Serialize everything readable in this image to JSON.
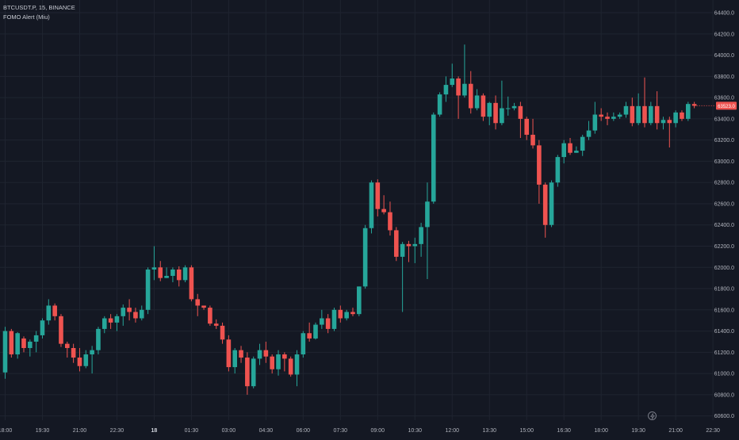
{
  "symbol_line": "BTCUSDT.P, 15, BINANCE",
  "indicator_line": "FOMO Alert (Miu)",
  "price_tag": "63523.0",
  "icons": {
    "bottom_right": "lightning-icon"
  },
  "colors": {
    "background": "#141823",
    "grid": "#1f2430",
    "up": "#26a69a",
    "down": "#ef5350",
    "axis_text": "#b2b5be"
  },
  "chart_data": {
    "type": "candlestick",
    "title": "",
    "xlabel": "",
    "ylabel": "",
    "ylim": [
      60560,
      64520
    ],
    "y_ticks": [
      60600,
      60800,
      61000,
      61200,
      61400,
      61600,
      61800,
      62000,
      62200,
      62400,
      62600,
      62800,
      63000,
      63200,
      63400,
      63600,
      63800,
      64000,
      64200,
      64400
    ],
    "x_ticks": [
      {
        "label": "18:00",
        "bar": 0
      },
      {
        "label": "19:30",
        "bar": 6
      },
      {
        "label": "21:00",
        "bar": 12
      },
      {
        "label": "22:30",
        "bar": 18
      },
      {
        "label": "18",
        "bar": 24,
        "bold": true
      },
      {
        "label": "01:30",
        "bar": 30
      },
      {
        "label": "03:00",
        "bar": 36
      },
      {
        "label": "04:30",
        "bar": 42
      },
      {
        "label": "06:00",
        "bar": 48
      },
      {
        "label": "07:30",
        "bar": 54
      },
      {
        "label": "09:00",
        "bar": 60
      },
      {
        "label": "10:30",
        "bar": 66
      },
      {
        "label": "12:00",
        "bar": 72
      },
      {
        "label": "13:30",
        "bar": 78
      },
      {
        "label": "15:00",
        "bar": 84
      },
      {
        "label": "16:30",
        "bar": 90
      },
      {
        "label": "18:00",
        "bar": 96
      },
      {
        "label": "19:30",
        "bar": 102
      },
      {
        "label": "21:00",
        "bar": 108
      },
      {
        "label": "22:30",
        "bar": 114
      }
    ],
    "grid": true,
    "last_price": 63523,
    "ohlc": [
      [
        61010,
        61400,
        60950,
        61440
      ],
      [
        61400,
        61180,
        61150,
        61420
      ],
      [
        61180,
        61380,
        61140,
        61390
      ],
      [
        61330,
        61240,
        61200,
        61350
      ],
      [
        61240,
        61300,
        61160,
        61320
      ],
      [
        61300,
        61360,
        61200,
        61400
      ],
      [
        61360,
        61500,
        61330,
        61520
      ],
      [
        61500,
        61640,
        61460,
        61700
      ],
      [
        61640,
        61540,
        61500,
        61660
      ],
      [
        61540,
        61280,
        61250,
        61560
      ],
      [
        61280,
        61240,
        61150,
        61300
      ],
      [
        61240,
        61150,
        61100,
        61280
      ],
      [
        61150,
        61070,
        61020,
        61240
      ],
      [
        61070,
        61180,
        61050,
        61220
      ],
      [
        61180,
        61220,
        61000,
        61260
      ],
      [
        61220,
        61420,
        61180,
        61440
      ],
      [
        61420,
        61520,
        61380,
        61540
      ],
      [
        61520,
        61480,
        61420,
        61560
      ],
      [
        61480,
        61540,
        61400,
        61560
      ],
      [
        61540,
        61620,
        61450,
        61650
      ],
      [
        61620,
        61580,
        61500,
        61700
      ],
      [
        61580,
        61520,
        61480,
        61620
      ],
      [
        61520,
        61600,
        61500,
        61640
      ],
      [
        61600,
        61980,
        61560,
        62000
      ],
      [
        61980,
        62000,
        61880,
        62200
      ],
      [
        62000,
        61900,
        61870,
        62060
      ],
      [
        61900,
        61920,
        61900,
        62000
      ],
      [
        61920,
        61980,
        61860,
        62000
      ],
      [
        61980,
        61880,
        61820,
        62010
      ],
      [
        61880,
        62000,
        61860,
        62020
      ],
      [
        62000,
        61700,
        61680,
        62020
      ],
      [
        61700,
        61640,
        61540,
        61750
      ],
      [
        61640,
        61620,
        61600,
        61640
      ],
      [
        61620,
        61470,
        61450,
        61640
      ],
      [
        61470,
        61450,
        61420,
        61510
      ],
      [
        61450,
        61320,
        61280,
        61480
      ],
      [
        61320,
        61060,
        61020,
        61360
      ],
      [
        61060,
        61220,
        61000,
        61240
      ],
      [
        61220,
        61150,
        61100,
        61260
      ],
      [
        61150,
        60880,
        60800,
        61200
      ],
      [
        60880,
        61140,
        60860,
        61160
      ],
      [
        61140,
        61220,
        61080,
        61280
      ],
      [
        61220,
        61160,
        61100,
        61300
      ],
      [
        61160,
        61040,
        61000,
        61180
      ],
      [
        61040,
        61180,
        60980,
        61220
      ],
      [
        61180,
        61140,
        61020,
        61200
      ],
      [
        61140,
        60990,
        60970,
        61160
      ],
      [
        60990,
        61180,
        60880,
        61220
      ],
      [
        61180,
        61380,
        61150,
        61400
      ],
      [
        61380,
        61330,
        61300,
        61480
      ],
      [
        61330,
        61460,
        61320,
        61480
      ],
      [
        61460,
        61520,
        61420,
        61600
      ],
      [
        61520,
        61420,
        61380,
        61560
      ],
      [
        61420,
        61600,
        61400,
        61620
      ],
      [
        61600,
        61520,
        61480,
        61640
      ],
      [
        61520,
        61580,
        61500,
        61600
      ],
      [
        61580,
        61560,
        61540,
        61620
      ],
      [
        61560,
        61820,
        61540,
        61820
      ],
      [
        61820,
        62370,
        61800,
        62400
      ],
      [
        62370,
        62800,
        62320,
        62820
      ],
      [
        62800,
        62550,
        62480,
        62830
      ],
      [
        62550,
        62520,
        62500,
        62680
      ],
      [
        62520,
        62350,
        62300,
        62620
      ],
      [
        62350,
        62100,
        62060,
        62380
      ],
      [
        62100,
        62220,
        61580,
        62240
      ],
      [
        62220,
        62200,
        62050,
        62250
      ],
      [
        62200,
        62220,
        62040,
        62280
      ],
      [
        62220,
        62380,
        62100,
        62420
      ],
      [
        62380,
        62620,
        61890,
        62800
      ],
      [
        62620,
        63440,
        62600,
        63460
      ],
      [
        63440,
        63630,
        63420,
        63650
      ],
      [
        63630,
        63720,
        63560,
        63800
      ],
      [
        63720,
        63780,
        63700,
        63920
      ],
      [
        63780,
        63620,
        63400,
        63800
      ],
      [
        63620,
        63730,
        63600,
        64100
      ],
      [
        63730,
        63500,
        63450,
        63850
      ],
      [
        63500,
        63620,
        63480,
        63680
      ],
      [
        63620,
        63420,
        63380,
        63640
      ],
      [
        63420,
        63550,
        63340,
        63560
      ],
      [
        63550,
        63360,
        63300,
        63620
      ],
      [
        63360,
        63500,
        63340,
        63760
      ],
      [
        63500,
        63500,
        63430,
        63610
      ],
      [
        63500,
        63520,
        63480,
        63550
      ],
      [
        63520,
        63400,
        63220,
        63560
      ],
      [
        63400,
        63250,
        63200,
        63420
      ],
      [
        63250,
        63150,
        63120,
        63400
      ],
      [
        63150,
        62780,
        62600,
        63200
      ],
      [
        62780,
        62400,
        62280,
        62800
      ],
      [
        62400,
        62800,
        62380,
        62820
      ],
      [
        62800,
        63040,
        62760,
        63060
      ],
      [
        63040,
        63170,
        62980,
        63200
      ],
      [
        63170,
        63080,
        63060,
        63220
      ],
      [
        63080,
        63100,
        63080,
        63140
      ],
      [
        63100,
        63230,
        63050,
        63250
      ],
      [
        63230,
        63290,
        63200,
        63380
      ],
      [
        63290,
        63440,
        63260,
        63560
      ],
      [
        63440,
        63420,
        63380,
        63500
      ],
      [
        63420,
        63400,
        63340,
        63460
      ],
      [
        63400,
        63420,
        63380,
        63460
      ],
      [
        63420,
        63440,
        63400,
        63460
      ],
      [
        63440,
        63520,
        63410,
        63560
      ],
      [
        63520,
        63360,
        63330,
        63600
      ],
      [
        63360,
        63520,
        63340,
        63640
      ],
      [
        63520,
        63360,
        63320,
        63790
      ],
      [
        63360,
        63520,
        63340,
        63560
      ],
      [
        63520,
        63360,
        63300,
        63660
      ],
      [
        63360,
        63390,
        63300,
        63420
      ],
      [
        63390,
        63360,
        63130,
        63420
      ],
      [
        63360,
        63460,
        63320,
        63480
      ],
      [
        63460,
        63400,
        63380,
        63480
      ],
      [
        63400,
        63540,
        63380,
        63560
      ],
      [
        63540,
        63523,
        63500,
        63560
      ]
    ]
  }
}
